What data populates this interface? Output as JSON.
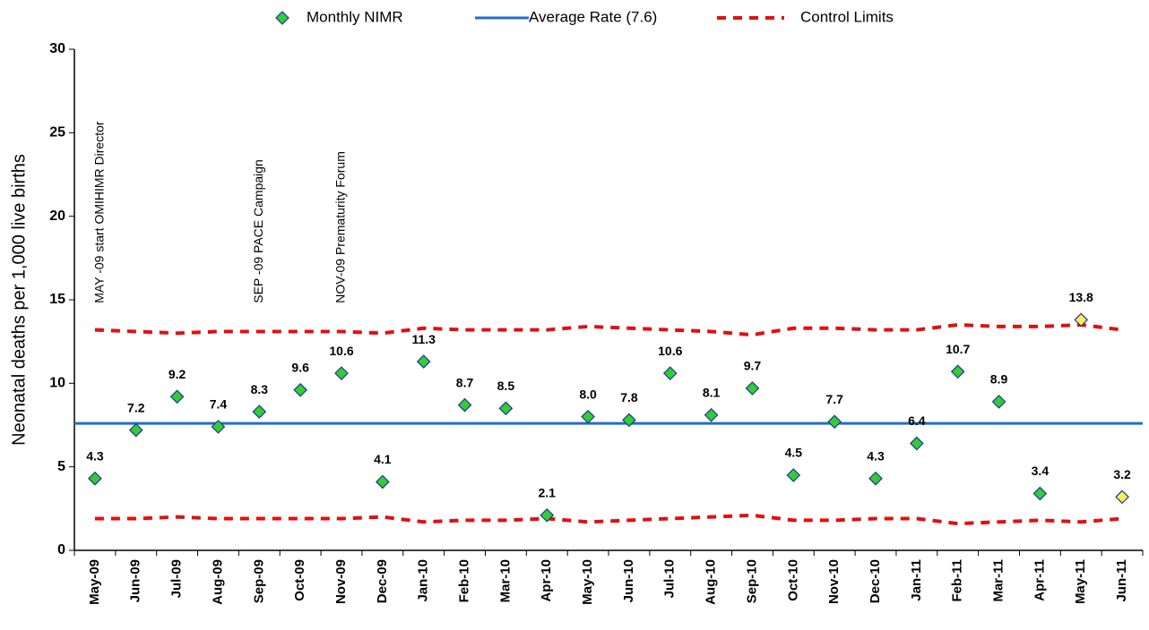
{
  "chart_data": {
    "type": "scatter",
    "y_label": "Neonatal deaths per 1,000 live births",
    "categories": [
      "May-09",
      "Jun-09",
      "Jul-09",
      "Aug-09",
      "Sep-09",
      "Oct-09",
      "Nov-09",
      "Dec-09",
      "Jan-10",
      "Feb-10",
      "Mar-10",
      "Apr-10",
      "May-10",
      "Jun-10",
      "Jul-10",
      "Aug-10",
      "Sep-10",
      "Oct-10",
      "Nov-10",
      "Dec-10",
      "Jan-11",
      "Feb-11",
      "Mar-11",
      "Apr-11",
      "May-11",
      "Jun-11"
    ],
    "series": [
      {
        "name": "Monthly NIMR",
        "color": "#33cc33",
        "values": [
          4.3,
          7.2,
          9.2,
          7.4,
          8.3,
          9.6,
          10.6,
          4.1,
          11.3,
          8.7,
          8.5,
          2.1,
          8.0,
          7.8,
          10.6,
          8.1,
          9.7,
          4.5,
          7.7,
          4.3,
          6.4,
          10.7,
          8.9,
          3.4,
          13.8,
          3.2
        ],
        "value_labels": [
          "4.3",
          "7.2",
          "9.2",
          "7.4",
          "8.3",
          "9.6",
          "10.6",
          "4.1",
          "11.3",
          "8.7",
          "8.5",
          "2.1",
          "8.0",
          "7.8",
          "10.6",
          "8.1",
          "9.7",
          "4.5",
          "7.7",
          "4.3",
          "6.4",
          "10.7",
          "8.9",
          "3.4",
          "13.8",
          "3.2"
        ],
        "point_colors": [
          "#33cc33",
          "#33cc33",
          "#33cc33",
          "#33cc33",
          "#33cc33",
          "#33cc33",
          "#33cc33",
          "#33cc33",
          "#33cc33",
          "#33cc33",
          "#33cc33",
          "#33cc33",
          "#33cc33",
          "#33cc33",
          "#33cc33",
          "#33cc33",
          "#33cc33",
          "#33cc33",
          "#33cc33",
          "#33cc33",
          "#33cc33",
          "#33cc33",
          "#33cc33",
          "#33cc33",
          "#ffee55",
          "#ffee55"
        ]
      },
      {
        "name": "Average Rate (7.6)",
        "color": "#1f6fc6",
        "value": 7.6
      },
      {
        "name": "Control Limits",
        "color": "#e01010",
        "upper": [
          13.2,
          13.1,
          13.0,
          13.1,
          13.1,
          13.1,
          13.1,
          13.0,
          13.3,
          13.2,
          13.2,
          13.2,
          13.4,
          13.3,
          13.2,
          13.1,
          12.9,
          13.3,
          13.3,
          13.2,
          13.2,
          13.5,
          13.4,
          13.4,
          13.5,
          13.2
        ],
        "lower": [
          1.9,
          1.9,
          2.0,
          1.9,
          1.9,
          1.9,
          1.9,
          2.0,
          1.7,
          1.8,
          1.8,
          1.9,
          1.7,
          1.8,
          1.9,
          2.0,
          2.1,
          1.8,
          1.8,
          1.9,
          1.9,
          1.6,
          1.7,
          1.8,
          1.7,
          1.9
        ]
      }
    ],
    "annotations": [
      {
        "text": "MAY -09 start OMIHIMR Director",
        "x": "May-09"
      },
      {
        "text": "SEP -09 PACE Campaign",
        "x": "Sep-09"
      },
      {
        "text": "NOV-09 Prematurity Forum",
        "x": "Nov-09"
      }
    ],
    "ylim": [
      0,
      30
    ],
    "yticks": [
      0,
      5,
      10,
      15,
      20,
      25,
      30
    ]
  }
}
